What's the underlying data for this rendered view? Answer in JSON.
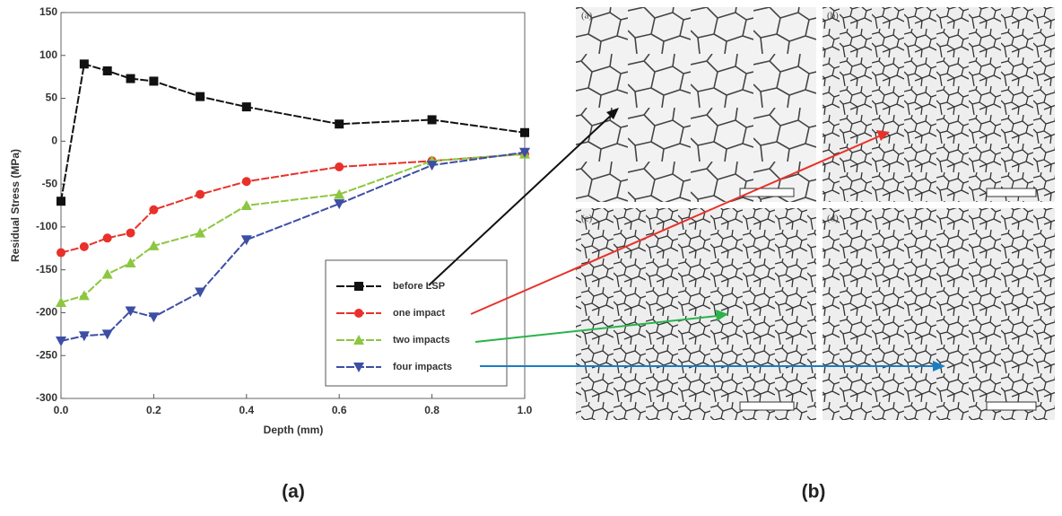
{
  "chart_data": {
    "type": "line",
    "x_label": "Depth (mm)",
    "y_label": "Residual Stress (MPa)",
    "x": [
      0,
      0.05,
      0.1,
      0.15,
      0.2,
      0.3,
      0.4,
      0.6,
      0.8,
      1.0
    ],
    "series": [
      {
        "name": "before LSP",
        "color": "#111111",
        "marker": "square",
        "values": [
          -70,
          90,
          82,
          73,
          70,
          52,
          40,
          20,
          25,
          10
        ]
      },
      {
        "name": "one impact",
        "color": "#e8312a",
        "marker": "circle",
        "values": [
          -130,
          -123,
          -113,
          -107,
          -80,
          -62,
          -47,
          -30,
          -23,
          -15
        ]
      },
      {
        "name": "two impacts",
        "color": "#8dc63f",
        "marker": "triangle-up",
        "values": [
          -188,
          -180,
          -155,
          -142,
          -122,
          -107,
          -75,
          -62,
          -23,
          -15
        ]
      },
      {
        "name": "four impacts",
        "color": "#3d4ea5",
        "marker": "triangle-down",
        "values": [
          -233,
          -227,
          -225,
          -198,
          -205,
          -176,
          -115,
          -73,
          -28,
          -13
        ]
      }
    ],
    "xlim": [
      0,
      1.0
    ],
    "ylim": [
      -300,
      150
    ],
    "xticks": [
      {
        "value": 0,
        "label": "0.0"
      },
      0.2,
      0.4,
      0.6,
      0.8,
      {
        "value": 1,
        "label": "1.0"
      }
    ],
    "yticks": [
      -300,
      -250,
      -200,
      -150,
      -100,
      -50,
      0,
      50,
      100,
      150
    ],
    "legend": "lower-right"
  },
  "figure": {
    "captions": [
      "(a)",
      "(b)"
    ],
    "panels": [
      "(a)",
      "(b)",
      "(c)",
      "(d)"
    ]
  }
}
